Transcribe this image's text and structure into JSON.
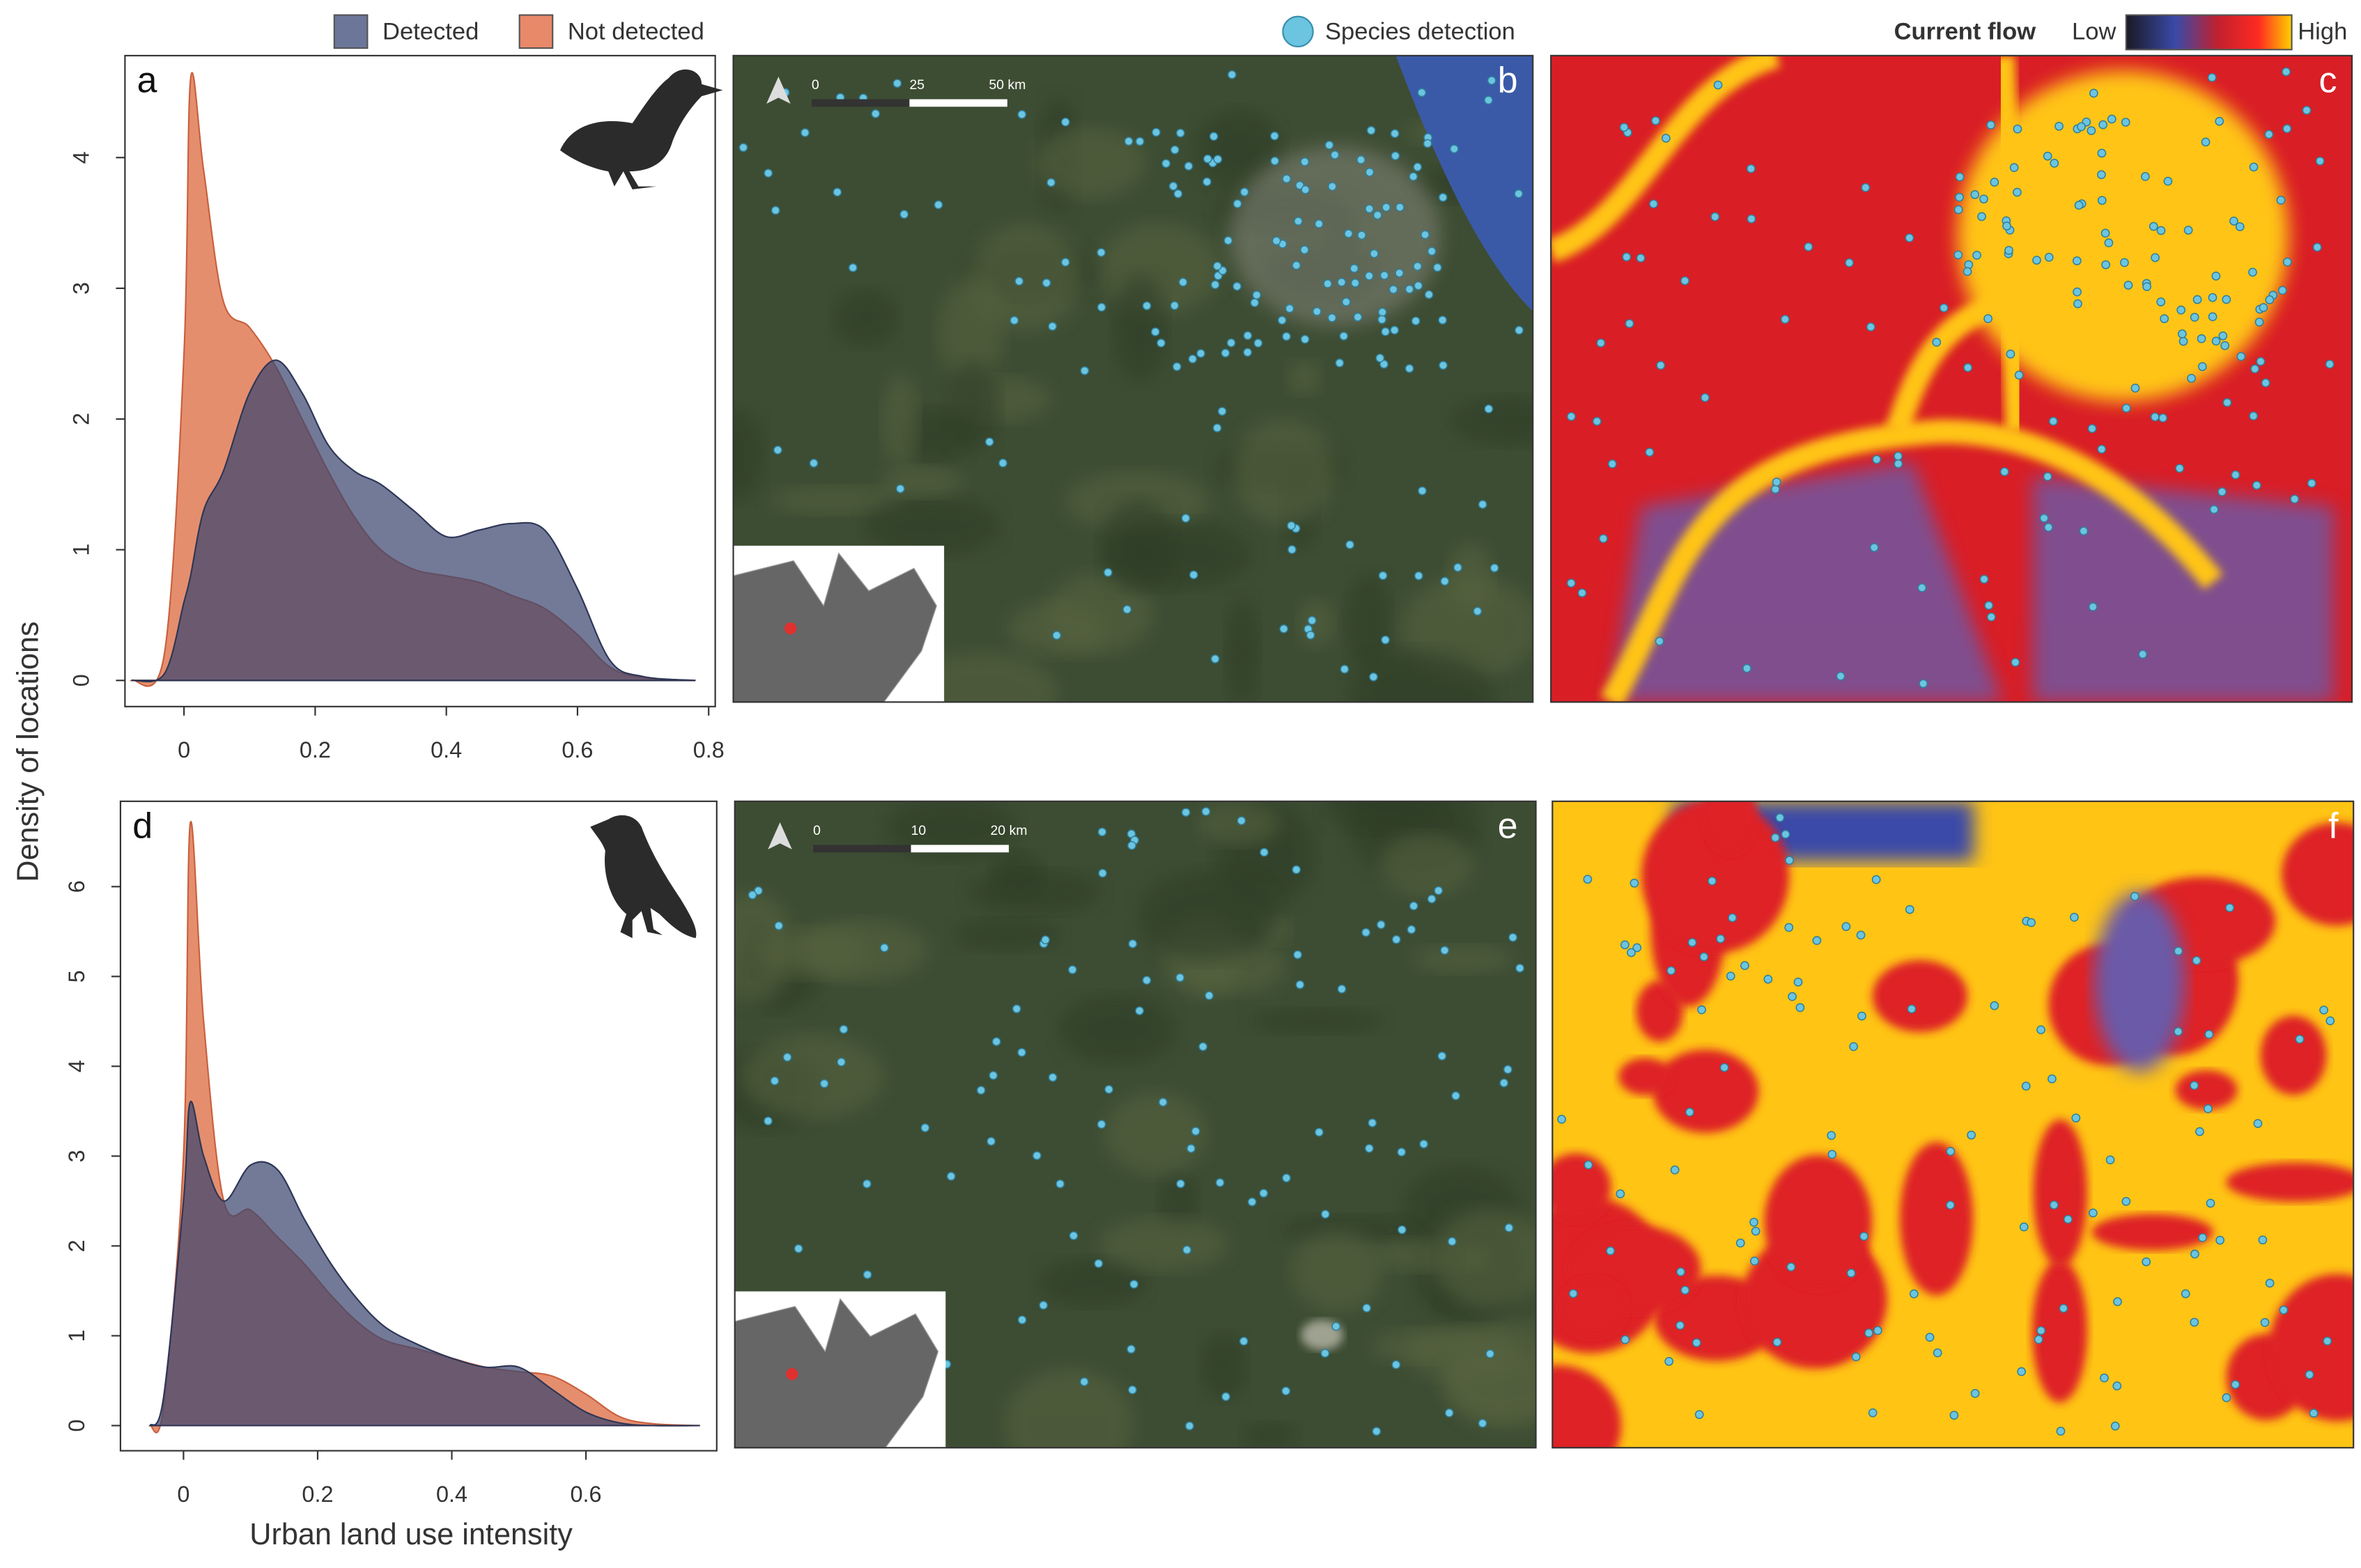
{
  "chart_data": [
    {
      "type": "area",
      "panel": "a",
      "x": [
        -0.08,
        -0.03,
        0,
        0.01,
        0.03,
        0.06,
        0.1,
        0.14,
        0.18,
        0.22,
        0.26,
        0.3,
        0.35,
        0.4,
        0.45,
        0.5,
        0.55,
        0.6,
        0.65,
        0.7,
        0.78
      ],
      "series": [
        {
          "name": "Not detected",
          "color": "#e8896a",
          "values": [
            0,
            0.2,
            2.5,
            4.6,
            3.9,
            2.9,
            2.7,
            2.4,
            2.0,
            1.6,
            1.25,
            1.0,
            0.85,
            0.8,
            0.75,
            0.65,
            0.55,
            0.35,
            0.1,
            0.02,
            0
          ]
        },
        {
          "name": "Detected",
          "color": "#6b7699",
          "values": [
            0,
            0.05,
            0.6,
            0.8,
            1.3,
            1.6,
            2.2,
            2.45,
            2.2,
            1.8,
            1.6,
            1.5,
            1.3,
            1.1,
            1.15,
            1.2,
            1.15,
            0.7,
            0.15,
            0.03,
            0
          ]
        }
      ],
      "xlim": [
        -0.09,
        0.81
      ],
      "xticks": [
        0,
        0.2,
        0.4,
        0.6,
        0.8
      ],
      "ylim": [
        -0.2,
        4.78
      ],
      "yticks": [
        0,
        1,
        2,
        3,
        4
      ]
    },
    {
      "type": "area",
      "panel": "d",
      "x": [
        -0.05,
        -0.03,
        0,
        0.01,
        0.03,
        0.06,
        0.1,
        0.14,
        0.18,
        0.22,
        0.26,
        0.3,
        0.35,
        0.4,
        0.45,
        0.5,
        0.55,
        0.6,
        0.65,
        0.7,
        0.77
      ],
      "series": [
        {
          "name": "Not detected",
          "color": "#e8896a",
          "values": [
            0,
            0.2,
            3,
            6.7,
            4.5,
            2.5,
            2.4,
            2.1,
            1.8,
            1.45,
            1.15,
            0.95,
            0.85,
            0.75,
            0.65,
            0.6,
            0.55,
            0.35,
            0.1,
            0.02,
            0
          ]
        },
        {
          "name": "Detected",
          "color": "#6b7699",
          "values": [
            0,
            0.3,
            2.5,
            3.6,
            3.0,
            2.5,
            2.9,
            2.85,
            2.3,
            1.8,
            1.4,
            1.1,
            0.9,
            0.75,
            0.65,
            0.65,
            0.4,
            0.15,
            0.03,
            0,
            0
          ]
        }
      ],
      "xlim": [
        -0.094,
        0.795
      ],
      "xticks": [
        0,
        0.2,
        0.4,
        0.6
      ],
      "ylim": [
        -0.28,
        6.95
      ],
      "yticks": [
        0,
        1,
        2,
        3,
        4,
        5,
        6
      ]
    }
  ],
  "y_label": "Density of locations",
  "x_label": "Urban land use intensity",
  "maps": {
    "species_legend": "Species detection",
    "flow_legend": {
      "title": "Current flow",
      "low": "Low",
      "high": "High"
    },
    "panels": [
      "b",
      "c",
      "e",
      "f"
    ],
    "scale_b": [
      "0",
      "25",
      "50 km"
    ],
    "scale_e": [
      "0",
      "10",
      "20 km"
    ]
  }
}
